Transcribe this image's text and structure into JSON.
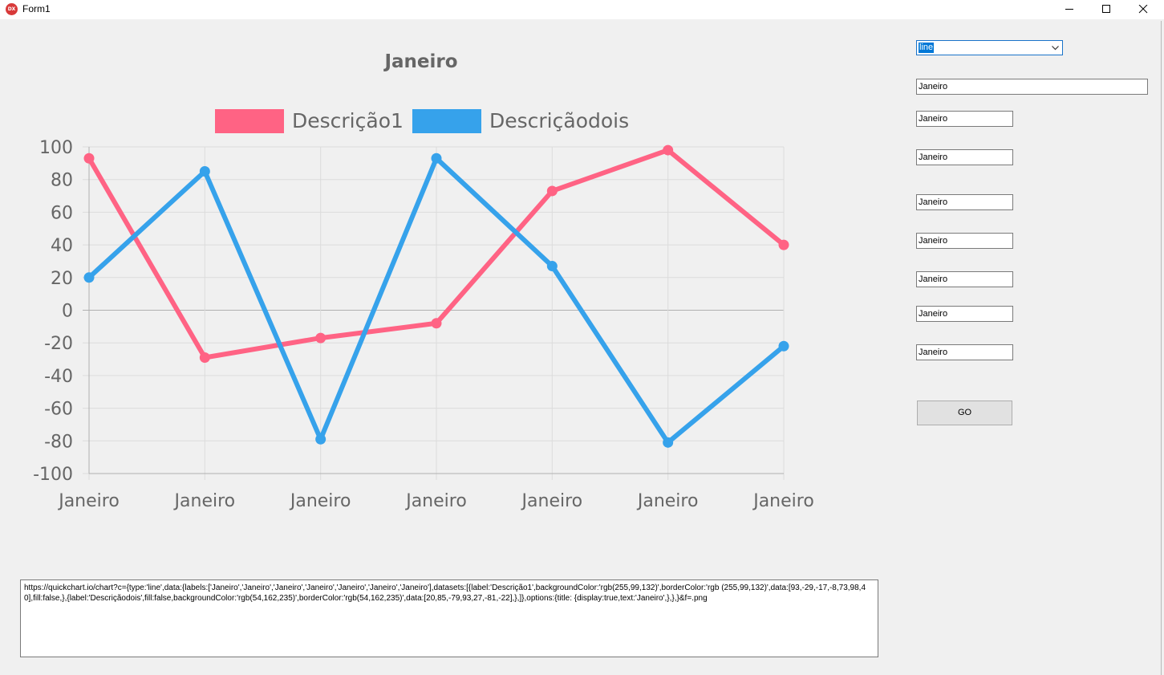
{
  "window": {
    "title": "Form1",
    "icon": "app-icon",
    "icon_text": "DX"
  },
  "chart_data": {
    "type": "line",
    "title": "Janeiro",
    "categories": [
      "Janeiro",
      "Janeiro",
      "Janeiro",
      "Janeiro",
      "Janeiro",
      "Janeiro",
      "Janeiro"
    ],
    "series": [
      {
        "name": "Descrição1",
        "color": "#ff6384",
        "values": [
          93,
          -29,
          -17,
          -8,
          73,
          98,
          40
        ]
      },
      {
        "name": "Descriçãodois",
        "color": "#36a2eb",
        "values": [
          20,
          85,
          -79,
          93,
          27,
          -81,
          -22
        ]
      }
    ],
    "yticks": [
      100,
      80,
      60,
      40,
      20,
      0,
      -20,
      -40,
      -60,
      -80,
      -100
    ],
    "ylim": [
      -100,
      100
    ],
    "grid": true,
    "legend": "top"
  },
  "form": {
    "chart_type": "line",
    "fields": [
      "Janeiro",
      "Janeiro",
      "Janeiro",
      "Janeiro",
      "Janeiro",
      "Janeiro",
      "Janeiro",
      "Janeiro"
    ],
    "go_label": "GO",
    "url_text": "https://quickchart.io/chart?c={type:'line',data:{labels:['Janeiro','Janeiro','Janeiro','Janeiro','Janeiro','Janeiro','Janeiro'],datasets:[{label:'Descrição1',backgroundColor:'rgb(255,99,132)',borderColor:'rgb (255,99,132)',data:[93,-29,-17,-8,73,98,40],fill:false,},{label:'Descriçãodois',fill:false,backgroundColor:'rgb(54,162,235)',borderColor:'rgb(54,162,235)',data:[20,85,-79,93,27,-81,-22],},]},options:{title: {display:true,text:'Janeiro',},},}&f=.png"
  }
}
